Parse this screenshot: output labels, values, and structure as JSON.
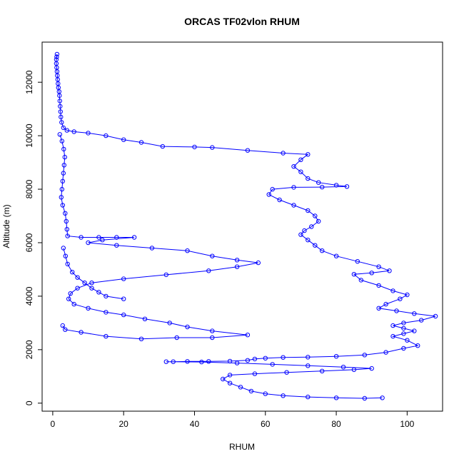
{
  "chart_data": {
    "type": "scatter",
    "title": "ORCAS TF02vlon RHUM",
    "xlabel": "RHUM",
    "ylabel": "Altitude (m)",
    "xlim": [
      -3,
      110
    ],
    "ylim": [
      -300,
      13500
    ],
    "xticks": [
      0,
      20,
      40,
      60,
      80,
      100
    ],
    "yticks": [
      0,
      2000,
      4000,
      6000,
      8000,
      10000,
      12000
    ],
    "grid": false,
    "legend": "none",
    "series": [
      {
        "color": "#0000ff",
        "marker": "open-circle",
        "connected": true,
        "points": [
          [
            1.2,
            13050
          ],
          [
            1.1,
            12950
          ],
          [
            1.0,
            12850
          ],
          [
            1.0,
            12700
          ],
          [
            1.1,
            12550
          ],
          [
            1.2,
            12400
          ],
          [
            1.3,
            12250
          ],
          [
            1.4,
            12100
          ],
          [
            1.5,
            11950
          ],
          [
            1.6,
            11800
          ],
          [
            1.8,
            11650
          ],
          [
            1.9,
            11500
          ],
          [
            2.0,
            11300
          ],
          [
            2.1,
            11100
          ],
          [
            2.2,
            10900
          ],
          [
            2.3,
            10700
          ],
          [
            2.5,
            10500
          ],
          [
            3.0,
            10300
          ],
          [
            4.0,
            10200
          ],
          [
            6.0,
            10150
          ],
          [
            10.0,
            10100
          ],
          [
            15.0,
            10000
          ],
          [
            20.0,
            9850
          ],
          [
            25.0,
            9750
          ],
          [
            31.0,
            9600
          ],
          [
            40.0,
            9580
          ],
          [
            45.0,
            9560
          ],
          [
            55.0,
            9450
          ],
          [
            65.0,
            9350
          ],
          [
            72.0,
            9300
          ],
          [
            70.0,
            9100
          ],
          [
            68.0,
            8850
          ],
          [
            70.0,
            8650
          ],
          [
            72.0,
            8400
          ],
          [
            75.0,
            8250
          ],
          [
            80.0,
            8150
          ],
          [
            83.0,
            8100
          ],
          [
            76.0,
            8080
          ],
          [
            68.0,
            8070
          ],
          [
            62.0,
            8000
          ],
          [
            61.0,
            7800
          ],
          [
            64.0,
            7600
          ],
          [
            68.0,
            7400
          ],
          [
            72.0,
            7200
          ],
          [
            74.0,
            7000
          ],
          [
            75.0,
            6800
          ],
          [
            73.0,
            6600
          ],
          [
            71.0,
            6450
          ],
          [
            70.0,
            6300
          ],
          [
            72.0,
            6100
          ],
          [
            74.0,
            5900
          ],
          [
            76.0,
            5700
          ],
          [
            80.0,
            5500
          ],
          [
            86.0,
            5300
          ],
          [
            92.0,
            5100
          ],
          [
            95.0,
            4950
          ],
          [
            90.0,
            4870
          ],
          [
            85.0,
            4820
          ],
          [
            87.0,
            4600
          ],
          [
            92.0,
            4400
          ],
          [
            96.0,
            4200
          ],
          [
            100.0,
            4050
          ],
          [
            98.0,
            3900
          ],
          [
            94.0,
            3700
          ],
          [
            92.0,
            3550
          ],
          [
            97.0,
            3450
          ],
          [
            102.0,
            3350
          ],
          [
            108.0,
            3250
          ],
          [
            104.0,
            3100
          ],
          [
            99.0,
            3000
          ],
          [
            96.0,
            2900
          ],
          [
            99.0,
            2800
          ],
          [
            102.0,
            2700
          ],
          [
            99.0,
            2600
          ],
          [
            96.0,
            2500
          ],
          [
            100.0,
            2350
          ],
          [
            103.0,
            2150
          ],
          [
            99.0,
            2050
          ],
          [
            94.0,
            1900
          ],
          [
            88.0,
            1800
          ],
          [
            80.0,
            1750
          ],
          [
            72.0,
            1720
          ],
          [
            65.0,
            1710
          ],
          [
            60.0,
            1680
          ],
          [
            57.0,
            1650
          ],
          [
            55.0,
            1600
          ],
          [
            50.0,
            1570
          ],
          [
            44.0,
            1560
          ],
          [
            38.0,
            1560
          ],
          [
            34.0,
            1550
          ],
          [
            32.0,
            1550
          ],
          [
            42.0,
            1540
          ],
          [
            52.0,
            1500
          ],
          [
            62.0,
            1450
          ],
          [
            72.0,
            1400
          ],
          [
            82.0,
            1350
          ],
          [
            90.0,
            1300
          ],
          [
            85.0,
            1250
          ],
          [
            76.0,
            1200
          ],
          [
            66.0,
            1150
          ],
          [
            57.0,
            1100
          ],
          [
            50.0,
            1050
          ],
          [
            48.0,
            900
          ],
          [
            50.0,
            750
          ],
          [
            53.0,
            600
          ],
          [
            56.0,
            450
          ],
          [
            60.0,
            350
          ],
          [
            65.0,
            280
          ],
          [
            72.0,
            230
          ],
          [
            80.0,
            200
          ],
          [
            88.0,
            180
          ],
          [
            93.0,
            200
          ]
        ]
      },
      {
        "color": "#0000ff",
        "marker": "open-circle",
        "connected": true,
        "points": [
          [
            2.0,
            10050
          ],
          [
            2.6,
            9800
          ],
          [
            3.1,
            9500
          ],
          [
            3.4,
            9200
          ],
          [
            3.2,
            8900
          ],
          [
            3.0,
            8600
          ],
          [
            2.8,
            8300
          ],
          [
            2.6,
            8000
          ],
          [
            2.4,
            7700
          ],
          [
            2.8,
            7400
          ],
          [
            3.5,
            7100
          ],
          [
            3.8,
            6800
          ],
          [
            4.0,
            6500
          ],
          [
            4.2,
            6250
          ],
          [
            8.0,
            6200
          ],
          [
            13.0,
            6200
          ],
          [
            18.0,
            6200
          ],
          [
            23.0,
            6200
          ],
          [
            14.0,
            6100
          ],
          [
            10.0,
            6000
          ],
          [
            18.0,
            5900
          ],
          [
            28.0,
            5800
          ],
          [
            38.0,
            5700
          ],
          [
            45.0,
            5500
          ],
          [
            52.0,
            5350
          ],
          [
            58.0,
            5250
          ],
          [
            52.0,
            5100
          ],
          [
            44.0,
            4950
          ],
          [
            32.0,
            4800
          ],
          [
            20.0,
            4650
          ],
          [
            11.0,
            4500
          ],
          [
            7.0,
            4300
          ],
          [
            5.0,
            4100
          ],
          [
            4.5,
            3900
          ],
          [
            6.0,
            3700
          ],
          [
            10.0,
            3550
          ],
          [
            15.0,
            3400
          ],
          [
            20.0,
            3300
          ],
          [
            26.0,
            3150
          ],
          [
            33.0,
            3000
          ],
          [
            38.0,
            2850
          ],
          [
            45.0,
            2700
          ],
          [
            55.0,
            2550
          ],
          [
            45.0,
            2450
          ],
          [
            35.0,
            2450
          ],
          [
            25.0,
            2400
          ],
          [
            15.0,
            2500
          ],
          [
            8.0,
            2650
          ],
          [
            3.5,
            2750
          ],
          [
            2.8,
            2900
          ]
        ]
      },
      {
        "color": "#0000ff",
        "marker": "open-circle",
        "connected": true,
        "points": [
          [
            3.0,
            5800
          ],
          [
            3.6,
            5500
          ],
          [
            4.2,
            5200
          ],
          [
            5.5,
            4900
          ],
          [
            7.0,
            4700
          ],
          [
            9.0,
            4500
          ],
          [
            11.0,
            4300
          ],
          [
            13.0,
            4150
          ],
          [
            15.0,
            4000
          ],
          [
            20.0,
            3900
          ]
        ]
      }
    ]
  }
}
